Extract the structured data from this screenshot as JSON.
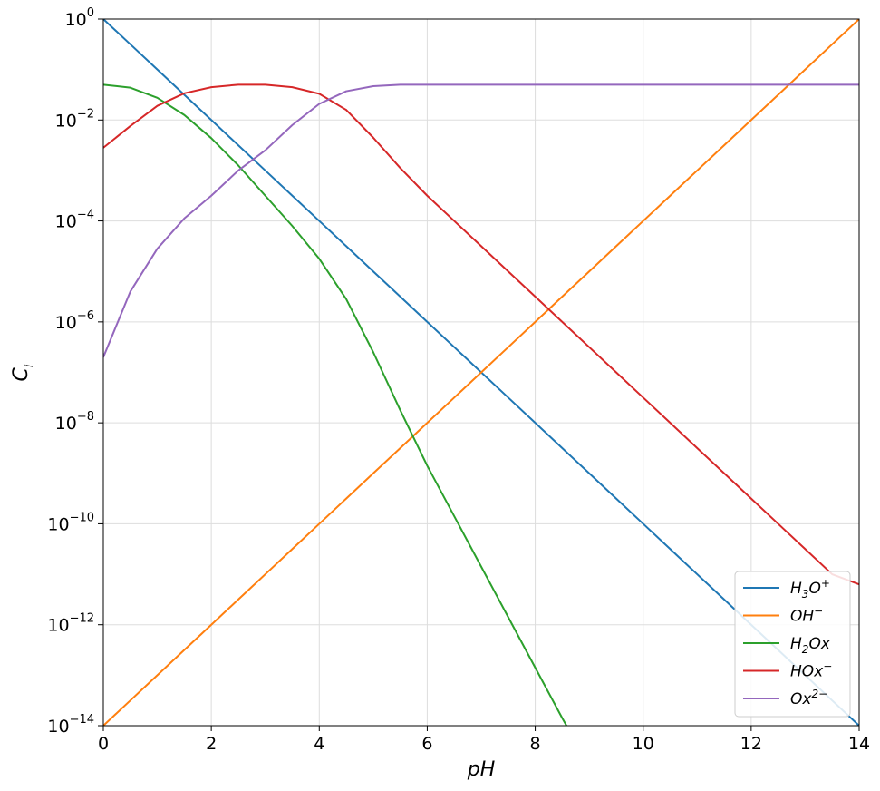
{
  "chart_data": {
    "type": "line",
    "title": "",
    "xlabel": "pH",
    "ylabel": "C",
    "ylabel_subscript": "i",
    "xlim": [
      0,
      14
    ],
    "ylim_log10": [
      -14,
      0
    ],
    "yscale": "log",
    "grid": true,
    "legend_position": "lower-right",
    "x_ticks": [
      0,
      2,
      4,
      6,
      8,
      10,
      12,
      14
    ],
    "y_ticks": [
      {
        "base": "10",
        "exp": "0"
      },
      {
        "base": "10",
        "exp": "−2"
      },
      {
        "base": "10",
        "exp": "−4"
      },
      {
        "base": "10",
        "exp": "−6"
      },
      {
        "base": "10",
        "exp": "−8"
      },
      {
        "base": "10",
        "exp": "−10"
      },
      {
        "base": "10",
        "exp": "−12"
      },
      {
        "base": "10",
        "exp": "−14"
      }
    ],
    "x": [
      0,
      0.5,
      1,
      1.5,
      2,
      2.5,
      3,
      3.5,
      4,
      4.5,
      5,
      5.5,
      6,
      6.5,
      7,
      7.5,
      8,
      8.5,
      9,
      9.5,
      10,
      10.5,
      11,
      11.5,
      12,
      12.5,
      13,
      13.5,
      14
    ],
    "series": [
      {
        "legend": {
          "main": "H",
          "sub": "3",
          "tail": "O",
          "sup": "+"
        },
        "color": "#1f77b4",
        "log10_values": [
          0,
          -0.5,
          -1,
          -1.5,
          -2,
          -2.5,
          -3,
          -3.5,
          -4,
          -4.5,
          -5,
          -5.5,
          -6,
          -6.5,
          -7,
          -7.5,
          -8,
          -8.5,
          -9,
          -9.5,
          -10,
          -10.5,
          -11,
          -11.5,
          -12,
          -12.5,
          -13,
          -13.5,
          -14
        ]
      },
      {
        "legend": {
          "main": "OH",
          "sub": "",
          "tail": "",
          "sup": "−"
        },
        "color": "#ff7f0e",
        "log10_values": [
          -14,
          -13.5,
          -13,
          -12.5,
          -12,
          -11.5,
          -11,
          -10.5,
          -10,
          -9.5,
          -9,
          -8.5,
          -8,
          -7.5,
          -7,
          -6.5,
          -6,
          -5.5,
          -5,
          -4.5,
          -4,
          -3.5,
          -3,
          -2.5,
          -2,
          -1.5,
          -1,
          -0.5,
          0
        ]
      },
      {
        "legend": {
          "main": "H",
          "sub": "2",
          "tail": "Ox",
          "sup": ""
        },
        "color": "#2ca02c",
        "log10_values": [
          -1.3,
          -1.36,
          -1.56,
          -1.9,
          -2.36,
          -2.9,
          -3.5,
          -4.1,
          -4.75,
          -5.55,
          -6.6,
          -7.75,
          -8.85,
          -9.85,
          -10.85,
          -11.85,
          -12.85,
          -13.85,
          -14.8
        ]
      },
      {
        "legend": {
          "main": "HOx",
          "sub": "",
          "tail": "",
          "sup": "−"
        },
        "color": "#d62728",
        "log10_values": [
          -2.55,
          -2.12,
          -1.72,
          -1.47,
          -1.35,
          -1.3,
          -1.3,
          -1.35,
          -1.48,
          -1.8,
          -2.35,
          -2.95,
          -3.5,
          -4.0,
          -4.5,
          -5.0,
          -5.5,
          -6.0,
          -6.5,
          -7.0,
          -7.5,
          -8.0,
          -8.5,
          -9.0,
          -9.5,
          -10.0,
          -10.5,
          -11.0,
          -11.2
        ]
      },
      {
        "legend": {
          "main": "Ox",
          "sub": "",
          "tail": "",
          "sup": "2−"
        },
        "color": "#9467bd",
        "log10_values": [
          -6.7,
          -5.4,
          -4.55,
          -3.95,
          -3.5,
          -3.0,
          -2.6,
          -2.1,
          -1.68,
          -1.43,
          -1.33,
          -1.3,
          -1.3,
          -1.3,
          -1.3,
          -1.3,
          -1.3,
          -1.3,
          -1.3,
          -1.3,
          -1.3,
          -1.3,
          -1.3,
          -1.3,
          -1.3,
          -1.3,
          -1.3,
          -1.3,
          -1.3
        ]
      }
    ]
  }
}
